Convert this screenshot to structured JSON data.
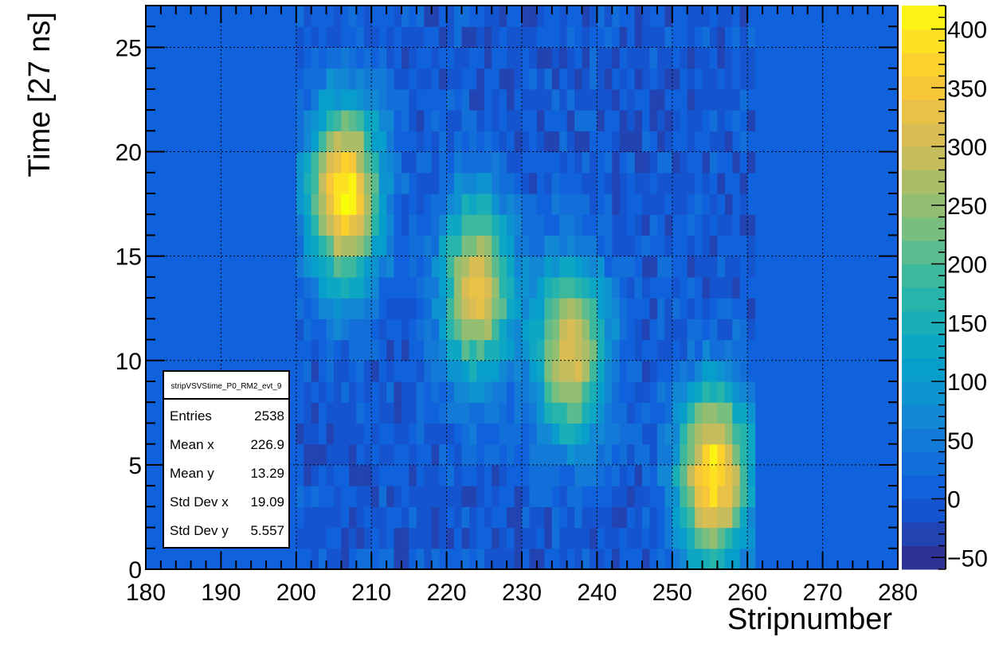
{
  "chart_data": {
    "type": "heatmap",
    "title": "",
    "xlabel": "Stripnumber",
    "ylabel": "Time [27 ns]",
    "xlim": [
      180,
      280
    ],
    "ylim": [
      0,
      27
    ],
    "x_ticks": [
      180,
      190,
      200,
      210,
      220,
      230,
      240,
      250,
      260,
      270,
      280
    ],
    "y_ticks": [
      0,
      5,
      10,
      15,
      20,
      25
    ],
    "grid": true,
    "bin_width_x": 1,
    "bin_height_y": 1,
    "data_x_range": [
      200,
      261
    ],
    "baseline_value": 0,
    "colorbar": {
      "min": -60,
      "max": 420,
      "ticks": [
        -50,
        0,
        50,
        100,
        150,
        200,
        250,
        300,
        350,
        400
      ],
      "palette": [
        "#352a87",
        "#0f5cdd",
        "#1481d6",
        "#06a4ca",
        "#2eb7a4",
        "#87bf77",
        "#d1bb59",
        "#fec832",
        "#f9fb0e"
      ]
    },
    "clusters": [
      {
        "center_strip": 206.5,
        "center_time": 18,
        "peak": 410
      },
      {
        "center_strip": 224,
        "center_time": 13.5,
        "peak": 330
      },
      {
        "center_strip": 236.5,
        "center_time": 10.5,
        "peak": 320
      },
      {
        "center_strip": 255.5,
        "center_time": 4.5,
        "peak": 400
      }
    ],
    "stats_box": {
      "title": "stripVSVStime_P0_RM2_evt_9",
      "rows": [
        {
          "label": "Entries",
          "value": "2538"
        },
        {
          "label": "Mean x",
          "value": "226.9"
        },
        {
          "label": "Mean y",
          "value": "13.29"
        },
        {
          "label": "Std Dev x",
          "value": "19.09"
        },
        {
          "label": "Std Dev y",
          "value": "5.557"
        }
      ]
    }
  }
}
